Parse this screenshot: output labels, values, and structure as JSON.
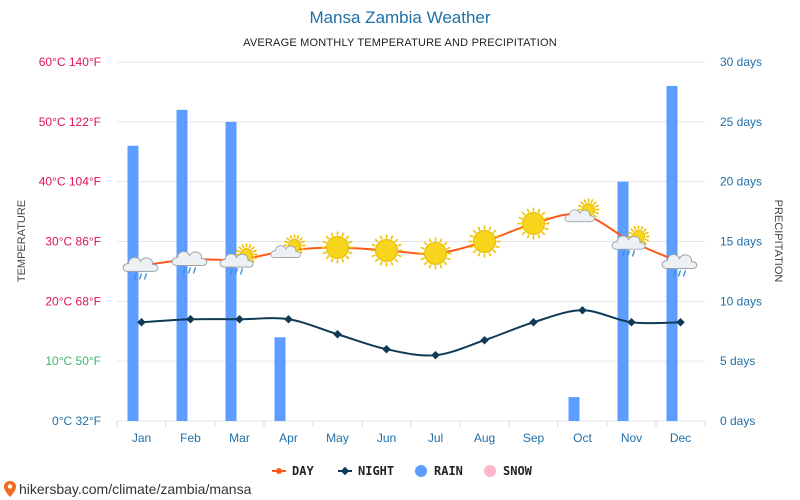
{
  "header": {
    "title": "Mansa Zambia Weather",
    "subtitle": "AVERAGE MONTHLY TEMPERATURE AND PRECIPITATION"
  },
  "colors": {
    "day": "#ff5a1a",
    "night": "#0f3b56",
    "rain": "#5c9dff",
    "snow": "#ffb6c8",
    "grid": "#e6e6e6",
    "accent": "#1f6fa8"
  },
  "chart_data": {
    "type": "bar+line",
    "title": "Mansa Zambia Weather",
    "subtitle": "AVERAGE MONTHLY TEMPERATURE AND PRECIPITATION",
    "categories": [
      "Jan",
      "Feb",
      "Mar",
      "Apr",
      "May",
      "Jun",
      "Jul",
      "Aug",
      "Sep",
      "Oct",
      "Nov",
      "Dec"
    ],
    "left_axis": {
      "label": "TEMPERATURE",
      "ylim": [
        0,
        60
      ],
      "ticks": [
        {
          "value": 0,
          "label": "0°C 32°F",
          "color": "#1f6fa8"
        },
        {
          "value": 10,
          "label": "10°C 50°F",
          "color": "#3cb371"
        },
        {
          "value": 20,
          "label": "20°C 68°F",
          "color": "#e0115f"
        },
        {
          "value": 30,
          "label": "30°C 86°F",
          "color": "#e0115f"
        },
        {
          "value": 40,
          "label": "40°C 104°F",
          "color": "#e0115f"
        },
        {
          "value": 50,
          "label": "50°C 122°F",
          "color": "#e0115f"
        },
        {
          "value": 60,
          "label": "60°C 140°F",
          "color": "#e0115f"
        }
      ]
    },
    "right_axis": {
      "label": "PRECIPITATION",
      "ylim": [
        0,
        30
      ],
      "ticks": [
        {
          "value": 0,
          "label": "0 days"
        },
        {
          "value": 5,
          "label": "5 days"
        },
        {
          "value": 10,
          "label": "10 days"
        },
        {
          "value": 15,
          "label": "15 days"
        },
        {
          "value": 20,
          "label": "20 days"
        },
        {
          "value": 25,
          "label": "25 days"
        },
        {
          "value": 30,
          "label": "30 days"
        }
      ]
    },
    "grid": true,
    "series": [
      {
        "name": "DAY",
        "kind": "line",
        "axis": "left",
        "values": [
          26,
          27,
          27,
          28.5,
          29,
          28.5,
          28,
          30,
          33,
          34.5,
          30,
          26.5
        ]
      },
      {
        "name": "NIGHT",
        "kind": "line",
        "axis": "left",
        "values": [
          16.5,
          17,
          17,
          17,
          14.5,
          12,
          11,
          13.5,
          16.5,
          18.5,
          16.5,
          16.5
        ]
      },
      {
        "name": "RAIN",
        "kind": "bar",
        "axis": "right",
        "values": [
          23,
          26,
          25,
          7,
          0,
          0,
          0,
          0,
          0,
          2,
          20,
          28
        ]
      },
      {
        "name": "SNOW",
        "kind": "bar",
        "axis": "right",
        "values": [
          0,
          0,
          0,
          0,
          0,
          0,
          0,
          0,
          0,
          0,
          0,
          0
        ]
      }
    ],
    "icons": [
      "cloud-rain-icon",
      "cloud-rain-icon",
      "cloud-sun-rain-icon",
      "cloud-sun-icon",
      "sun-icon",
      "sun-icon",
      "sun-icon",
      "sun-icon",
      "sun-icon",
      "cloud-sun-icon",
      "cloud-sun-rain-icon",
      "cloud-rain-icon"
    ],
    "legend_position": "bottom"
  },
  "legend": [
    {
      "label": "DAY",
      "marker": "line-dot",
      "color": "#ff5a1a"
    },
    {
      "label": "NIGHT",
      "marker": "line-diamond",
      "color": "#0f3b56"
    },
    {
      "label": "RAIN",
      "marker": "dot",
      "color": "#5c9dff"
    },
    {
      "label": "SNOW",
      "marker": "dot",
      "color": "#ffb6c8"
    }
  ],
  "footer": {
    "source": "hikersbay.com/climate/zambia/mansa",
    "icon": "location-pin-icon"
  }
}
